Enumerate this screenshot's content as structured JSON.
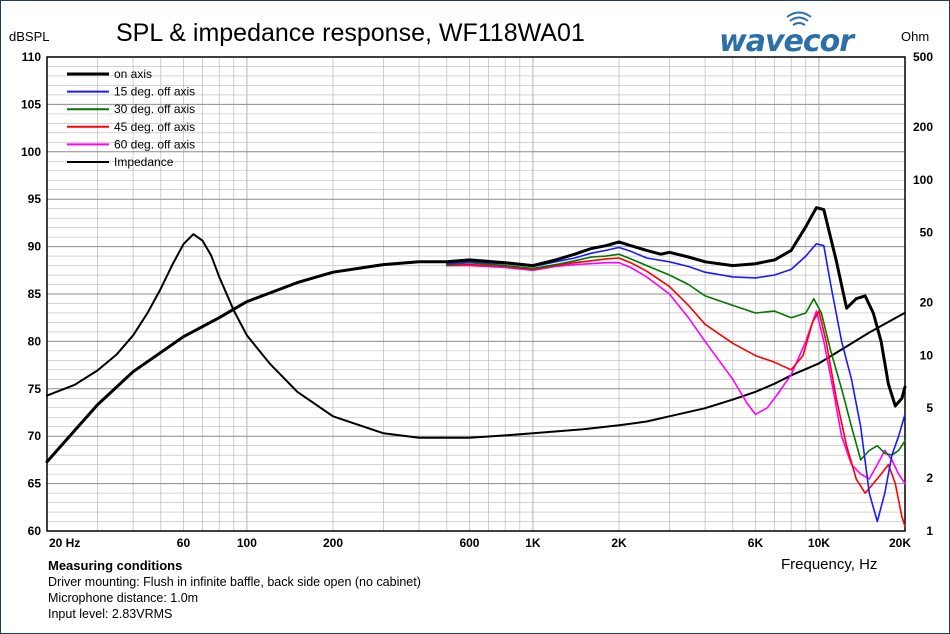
{
  "brand": {
    "logo_text": "wavecor",
    "logo_color": "#2d6fa8"
  },
  "colors": {
    "frame": "#1f3b63",
    "grid": "#b9b9b9",
    "on_axis": "#000000",
    "deg15": "#1a1aff",
    "deg30": "#007700",
    "deg45": "#ff0000",
    "deg60": "#ff00ff",
    "impedance": "#000000"
  },
  "measuring_conditions": {
    "title": "Measuring conditions",
    "lines": [
      "Driver mounting: Flush in infinite baffle, back side open (no cabinet)",
      "Microphone distance: 1.0m",
      "Input level: 2.83VRMS"
    ]
  },
  "chart_data": {
    "type": "line",
    "title": "SPL & impedance response, WF118WA01",
    "xlabel": "Frequency, Hz",
    "ylabel_left": "dBSPL",
    "ylabel_right": "Ohm",
    "x_scale": "log",
    "xlim": [
      20,
      20000
    ],
    "ylim_left": [
      60,
      110
    ],
    "ylim_right": [
      1,
      500
    ],
    "y_right_scale": "log",
    "grid": true,
    "legend_position": "top-left",
    "x_ticks": [
      {
        "value": 20,
        "label": "20 Hz"
      },
      {
        "value": 60,
        "label": "60"
      },
      {
        "value": 100,
        "label": "100"
      },
      {
        "value": 200,
        "label": "200"
      },
      {
        "value": 600,
        "label": "600"
      },
      {
        "value": 1000,
        "label": "1K"
      },
      {
        "value": 2000,
        "label": "2K"
      },
      {
        "value": 6000,
        "label": "6K"
      },
      {
        "value": 10000,
        "label": "10K"
      },
      {
        "value": 20000,
        "label": "20K"
      }
    ],
    "y_left_ticks": [
      110,
      105,
      100,
      95,
      90,
      85,
      80,
      75,
      70,
      65,
      60
    ],
    "y_right_ticks": [
      {
        "value": 500,
        "label": "500"
      },
      {
        "value": 200,
        "label": "200"
      },
      {
        "value": 100,
        "label": "100"
      },
      {
        "value": 50,
        "label": "50"
      },
      {
        "value": 20,
        "label": "20"
      },
      {
        "value": 10,
        "label": "10"
      },
      {
        "value": 5,
        "label": "5"
      },
      {
        "value": 2,
        "label": "2"
      },
      {
        "value": 1,
        "label": "1"
      }
    ],
    "series": [
      {
        "name": "on axis",
        "color": "#000000",
        "width": 3,
        "axis": "left",
        "points": [
          [
            20,
            67.3
          ],
          [
            30,
            73.3
          ],
          [
            40,
            76.8
          ],
          [
            60,
            80.5
          ],
          [
            80,
            82.5
          ],
          [
            100,
            84.2
          ],
          [
            150,
            86.2
          ],
          [
            200,
            87.3
          ],
          [
            300,
            88.1
          ],
          [
            400,
            88.4
          ],
          [
            500,
            88.4
          ],
          [
            600,
            88.6
          ],
          [
            800,
            88.3
          ],
          [
            1000,
            88.0
          ],
          [
            1200,
            88.6
          ],
          [
            1400,
            89.2
          ],
          [
            1600,
            89.8
          ],
          [
            1800,
            90.1
          ],
          [
            2000,
            90.5
          ],
          [
            2200,
            90.1
          ],
          [
            2500,
            89.6
          ],
          [
            2800,
            89.2
          ],
          [
            3000,
            89.4
          ],
          [
            3500,
            88.9
          ],
          [
            4000,
            88.4
          ],
          [
            5000,
            88.0
          ],
          [
            6000,
            88.2
          ],
          [
            7000,
            88.6
          ],
          [
            8000,
            89.6
          ],
          [
            9000,
            92.1
          ],
          [
            9800,
            94.1
          ],
          [
            10400,
            93.9
          ],
          [
            11500,
            88.5
          ],
          [
            12500,
            83.5
          ],
          [
            13500,
            84.5
          ],
          [
            14500,
            84.8
          ],
          [
            15500,
            83.0
          ],
          [
            16500,
            80.0
          ],
          [
            17500,
            75.5
          ],
          [
            18500,
            73.2
          ],
          [
            19500,
            74.0
          ],
          [
            20000,
            75.2
          ]
        ]
      },
      {
        "name": "15 deg. off axis",
        "color": "#1a1aff",
        "width": 1.6,
        "axis": "left",
        "points": [
          [
            500,
            88.2
          ],
          [
            600,
            88.4
          ],
          [
            800,
            88.2
          ],
          [
            1000,
            87.9
          ],
          [
            1200,
            88.4
          ],
          [
            1400,
            88.8
          ],
          [
            1600,
            89.3
          ],
          [
            1800,
            89.6
          ],
          [
            2000,
            89.9
          ],
          [
            2200,
            89.5
          ],
          [
            2500,
            88.8
          ],
          [
            3000,
            88.4
          ],
          [
            3500,
            87.9
          ],
          [
            4000,
            87.3
          ],
          [
            5000,
            86.8
          ],
          [
            6000,
            86.7
          ],
          [
            7000,
            87.0
          ],
          [
            8000,
            87.6
          ],
          [
            9000,
            89.0
          ],
          [
            9800,
            90.3
          ],
          [
            10400,
            90.1
          ],
          [
            11000,
            86.0
          ],
          [
            12000,
            80.0
          ],
          [
            13000,
            76.0
          ],
          [
            14000,
            71.0
          ],
          [
            15000,
            64.0
          ],
          [
            16000,
            61.0
          ],
          [
            17000,
            64.0
          ],
          [
            18000,
            68.0
          ],
          [
            19000,
            70.0
          ],
          [
            20000,
            72.3
          ]
        ]
      },
      {
        "name": "30 deg. off axis",
        "color": "#007700",
        "width": 1.6,
        "axis": "left",
        "points": [
          [
            500,
            88.1
          ],
          [
            600,
            88.3
          ],
          [
            800,
            88.0
          ],
          [
            1000,
            87.7
          ],
          [
            1200,
            88.1
          ],
          [
            1400,
            88.5
          ],
          [
            1600,
            88.9
          ],
          [
            1800,
            89.0
          ],
          [
            2000,
            89.2
          ],
          [
            2200,
            88.7
          ],
          [
            2500,
            88.0
          ],
          [
            3000,
            87.0
          ],
          [
            3500,
            86.0
          ],
          [
            4000,
            84.8
          ],
          [
            5000,
            83.8
          ],
          [
            6000,
            83.0
          ],
          [
            7000,
            83.2
          ],
          [
            8000,
            82.5
          ],
          [
            9000,
            83.0
          ],
          [
            9600,
            84.5
          ],
          [
            10200,
            83.0
          ],
          [
            11000,
            79.0
          ],
          [
            12000,
            75.0
          ],
          [
            13000,
            71.0
          ],
          [
            14000,
            67.5
          ],
          [
            15000,
            68.5
          ],
          [
            16000,
            69.0
          ],
          [
            17000,
            68.2
          ],
          [
            18000,
            68.0
          ],
          [
            19000,
            68.5
          ],
          [
            20000,
            69.5
          ]
        ]
      },
      {
        "name": "45 deg. off axis",
        "color": "#ff0000",
        "width": 1.6,
        "axis": "left",
        "points": [
          [
            500,
            88.0
          ],
          [
            600,
            88.1
          ],
          [
            800,
            87.9
          ],
          [
            1000,
            87.6
          ],
          [
            1200,
            88.0
          ],
          [
            1400,
            88.3
          ],
          [
            1600,
            88.5
          ],
          [
            1800,
            88.7
          ],
          [
            2000,
            88.8
          ],
          [
            2200,
            88.3
          ],
          [
            2500,
            87.4
          ],
          [
            3000,
            85.8
          ],
          [
            3500,
            83.8
          ],
          [
            4000,
            81.8
          ],
          [
            5000,
            79.8
          ],
          [
            6000,
            78.5
          ],
          [
            7000,
            77.8
          ],
          [
            8000,
            77.0
          ],
          [
            8800,
            78.5
          ],
          [
            9500,
            82.0
          ],
          [
            10000,
            83.2
          ],
          [
            10600,
            80.0
          ],
          [
            11500,
            74.0
          ],
          [
            12500,
            69.0
          ],
          [
            13500,
            65.5
          ],
          [
            14500,
            64.0
          ],
          [
            15500,
            65.0
          ],
          [
            16500,
            66.0
          ],
          [
            17500,
            67.0
          ],
          [
            18500,
            65.0
          ],
          [
            19500,
            61.5
          ],
          [
            20000,
            60.5
          ]
        ]
      },
      {
        "name": "60 deg. off axis",
        "color": "#ff00ff",
        "width": 1.6,
        "axis": "left",
        "points": [
          [
            500,
            88.0
          ],
          [
            600,
            88.0
          ],
          [
            800,
            87.8
          ],
          [
            1000,
            87.5
          ],
          [
            1200,
            87.9
          ],
          [
            1400,
            88.1
          ],
          [
            1600,
            88.2
          ],
          [
            1800,
            88.3
          ],
          [
            2000,
            88.3
          ],
          [
            2200,
            87.8
          ],
          [
            2500,
            86.8
          ],
          [
            3000,
            85.0
          ],
          [
            3500,
            82.5
          ],
          [
            4000,
            80.0
          ],
          [
            5000,
            76.0
          ],
          [
            5600,
            73.5
          ],
          [
            6000,
            72.3
          ],
          [
            6600,
            73.0
          ],
          [
            7200,
            74.5
          ],
          [
            8000,
            76.5
          ],
          [
            9000,
            80.0
          ],
          [
            9800,
            83.2
          ],
          [
            10400,
            80.0
          ],
          [
            11200,
            75.0
          ],
          [
            12000,
            70.0
          ],
          [
            13000,
            67.0
          ],
          [
            14000,
            66.0
          ],
          [
            15000,
            65.5
          ],
          [
            16000,
            67.0
          ],
          [
            17000,
            68.5
          ],
          [
            18000,
            67.5
          ],
          [
            19000,
            66.0
          ],
          [
            20000,
            65.0
          ]
        ]
      },
      {
        "name": "Impedance",
        "color": "#000000",
        "width": 2,
        "axis": "right",
        "points": [
          [
            20,
            5.9
          ],
          [
            25,
            6.8
          ],
          [
            30,
            8.2
          ],
          [
            35,
            10.1
          ],
          [
            40,
            13.0
          ],
          [
            45,
            17.5
          ],
          [
            50,
            24.0
          ],
          [
            55,
            33.0
          ],
          [
            60,
            43.0
          ],
          [
            65,
            49.0
          ],
          [
            70,
            45.0
          ],
          [
            75,
            37.0
          ],
          [
            80,
            28.0
          ],
          [
            90,
            18.0
          ],
          [
            100,
            13.0
          ],
          [
            120,
            9.0
          ],
          [
            150,
            6.2
          ],
          [
            200,
            4.5
          ],
          [
            300,
            3.6
          ],
          [
            400,
            3.4
          ],
          [
            600,
            3.4
          ],
          [
            800,
            3.5
          ],
          [
            1000,
            3.6
          ],
          [
            1500,
            3.8
          ],
          [
            2000,
            4.0
          ],
          [
            2500,
            4.2
          ],
          [
            3000,
            4.5
          ],
          [
            4000,
            5.0
          ],
          [
            5000,
            5.6
          ],
          [
            6000,
            6.2
          ],
          [
            7000,
            6.9
          ],
          [
            8000,
            7.7
          ],
          [
            10000,
            9.0
          ],
          [
            12000,
            10.8
          ],
          [
            15000,
            13.5
          ],
          [
            20000,
            17.5
          ]
        ]
      }
    ]
  }
}
